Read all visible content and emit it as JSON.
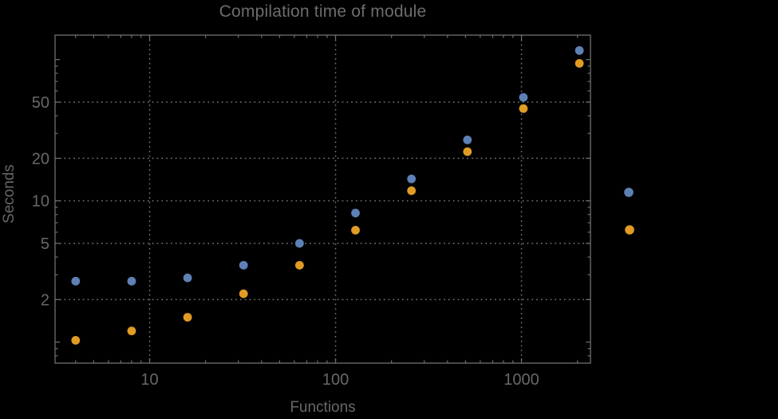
{
  "chart_data": {
    "type": "scatter",
    "title": "Compilation time of module",
    "xlabel": "Functions",
    "ylabel": "Seconds",
    "x_scale": "log",
    "y_scale": "log",
    "xlim": [
      3.1,
      2350
    ],
    "ylim": [
      0.71,
      149
    ],
    "grid": "dotted",
    "x": [
      4,
      8,
      16,
      32,
      64,
      128,
      256,
      512,
      1024,
      2048
    ],
    "series": [
      {
        "name": "blue",
        "color": "#5e81b5",
        "values": [
          2.7,
          2.7,
          2.85,
          3.5,
          5.0,
          8.2,
          14.3,
          27,
          54,
          116
        ]
      },
      {
        "name": "orange",
        "color": "#e19c24",
        "values": [
          1.03,
          1.2,
          1.5,
          2.2,
          3.5,
          6.2,
          11.8,
          22.3,
          45,
          94
        ]
      }
    ],
    "x_gridlines": [
      10,
      100,
      1000
    ],
    "y_gridlines": [
      2,
      5,
      10,
      20,
      50
    ],
    "x_tick_labels": [
      {
        "value": 10,
        "label": "10"
      },
      {
        "value": 100,
        "label": "100"
      },
      {
        "value": 1000,
        "label": "1000"
      }
    ],
    "y_tick_labels": [
      {
        "value": 2,
        "label": "2"
      },
      {
        "value": 5,
        "label": "5"
      },
      {
        "value": 10,
        "label": "10"
      },
      {
        "value": 20,
        "label": "20"
      },
      {
        "value": 50,
        "label": "50"
      }
    ],
    "legend": {
      "position": "outside-right",
      "markers": [
        {
          "series": "blue",
          "color": "#5e81b5"
        },
        {
          "series": "orange",
          "color": "#e19c24"
        }
      ]
    }
  },
  "style": {
    "background": "#000000",
    "frame_color": "#6f6f6f",
    "grid_color": "#757575",
    "text_color": "#686868",
    "point_radius": 5.4,
    "legend_marker_radius": 5.8
  }
}
